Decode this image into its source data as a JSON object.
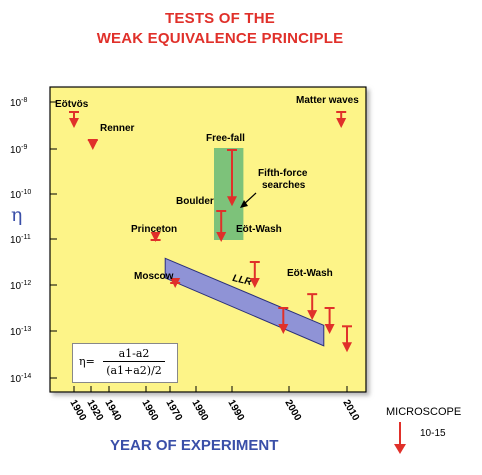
{
  "chart_data": {
    "type": "scatter",
    "title": "TESTS OF THE",
    "subtitle": "WEAK EQUIVALENCE PRINCIPLE",
    "xlabel": "YEAR OF EXPERIMENT",
    "ylabel": "η",
    "y_scale": "log",
    "x_ticks": [
      "1900",
      "1920",
      "1940",
      "1960",
      "1970",
      "1980",
      "1990",
      "2000",
      "2010"
    ],
    "y_ticks": [
      "10-8",
      "10-9",
      "10-10",
      "10-11",
      "10-12",
      "10-13",
      "10-14"
    ],
    "grid": false,
    "upper_limits": [
      {
        "year": 1900,
        "eta": 3e-09,
        "label": "Eötvös"
      },
      {
        "year": 1922,
        "eta": 1e-09,
        "label": "Renner"
      },
      {
        "year": 1964,
        "eta": 1e-11,
        "label": "Princeton"
      },
      {
        "year": 1972,
        "eta": 1e-12,
        "label": "Moscow"
      },
      {
        "year": 1987,
        "eta": 1e-11,
        "label": "Boulder"
      },
      {
        "year": 1990,
        "eta": 6e-11,
        "label": "Free-fall"
      },
      {
        "year": 1994,
        "eta": 1e-12,
        "label": "Eöt-Wash"
      },
      {
        "year": 1999,
        "eta": 1e-13,
        "label": "Eöt-Wash"
      },
      {
        "year": 2004,
        "eta": 2e-13
      },
      {
        "year": 2007,
        "eta": 1e-13
      },
      {
        "year": 2009,
        "eta": 3e-09,
        "label": "Matter waves"
      },
      {
        "year": 2010,
        "eta": 4e-14
      }
    ],
    "regions": [
      {
        "type": "fifth-force",
        "label": "Fifth-force searches",
        "color": "#7dc27a",
        "year_start": 1985,
        "year_end": 1992,
        "eta_top": 1e-09,
        "eta_bottom": 1e-11
      },
      {
        "type": "llr",
        "label": "LLR",
        "color": "#8f93d6",
        "from": {
          "year": 1968,
          "eta_top": 4e-12,
          "eta_bottom": 1.5e-12
        },
        "to": {
          "year": 2006,
          "eta_top": 1.4e-13,
          "eta_bottom": 5e-14
        }
      }
    ],
    "formula": {
      "lhs": "η=",
      "numerator": "a1-a2",
      "denominator": "(a1+a2)/2"
    },
    "legend": {
      "label": "MICROSCOPE",
      "value": "10-15"
    },
    "colors": {
      "plot_bg": "#fdf488",
      "arrow": "#e0302a",
      "title": "#e0302a",
      "axis_label": "#3a4fa8"
    }
  }
}
